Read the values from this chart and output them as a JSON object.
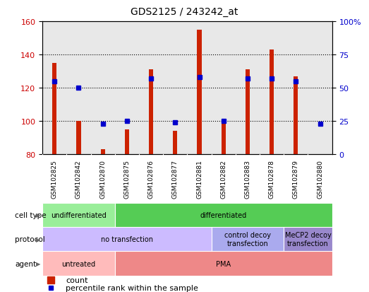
{
  "title": "GDS2125 / 243242_at",
  "samples": [
    "GSM102825",
    "GSM102842",
    "GSM102870",
    "GSM102875",
    "GSM102876",
    "GSM102877",
    "GSM102881",
    "GSM102882",
    "GSM102883",
    "GSM102878",
    "GSM102879",
    "GSM102880"
  ],
  "counts": [
    135,
    100,
    83,
    95,
    131,
    94,
    155,
    100,
    131,
    143,
    127,
    80
  ],
  "percentile_ranks": [
    55,
    50,
    23,
    25,
    57,
    24,
    58,
    25,
    57,
    57,
    55,
    23
  ],
  "ymin": 80,
  "ymax": 160,
  "yticks_left": [
    80,
    100,
    120,
    140,
    160
  ],
  "yticks_right": [
    0,
    25,
    50,
    75,
    100
  ],
  "ylabel_left_color": "#cc0000",
  "ylabel_right_color": "#0000cc",
  "cell_type_groups": [
    {
      "label": "undifferentiated",
      "start": 0,
      "end": 3,
      "color": "#99ee99"
    },
    {
      "label": "differentiated",
      "start": 3,
      "end": 12,
      "color": "#55cc55"
    }
  ],
  "protocol_groups": [
    {
      "label": "no transfection",
      "start": 0,
      "end": 7,
      "color": "#ccbbff"
    },
    {
      "label": "control decoy\ntransfection",
      "start": 7,
      "end": 10,
      "color": "#aaaaee"
    },
    {
      "label": "MeCP2 decoy\ntransfection",
      "start": 10,
      "end": 12,
      "color": "#9988cc"
    }
  ],
  "agent_groups": [
    {
      "label": "untreated",
      "start": 0,
      "end": 3,
      "color": "#ffbbbb"
    },
    {
      "label": "PMA",
      "start": 3,
      "end": 12,
      "color": "#ee8888"
    }
  ],
  "bar_color": "#cc2200",
  "dot_color": "#0000cc",
  "chart_bg": "#e8e8e8",
  "legend_count_color": "#cc2200",
  "legend_dot_color": "#0000cc"
}
